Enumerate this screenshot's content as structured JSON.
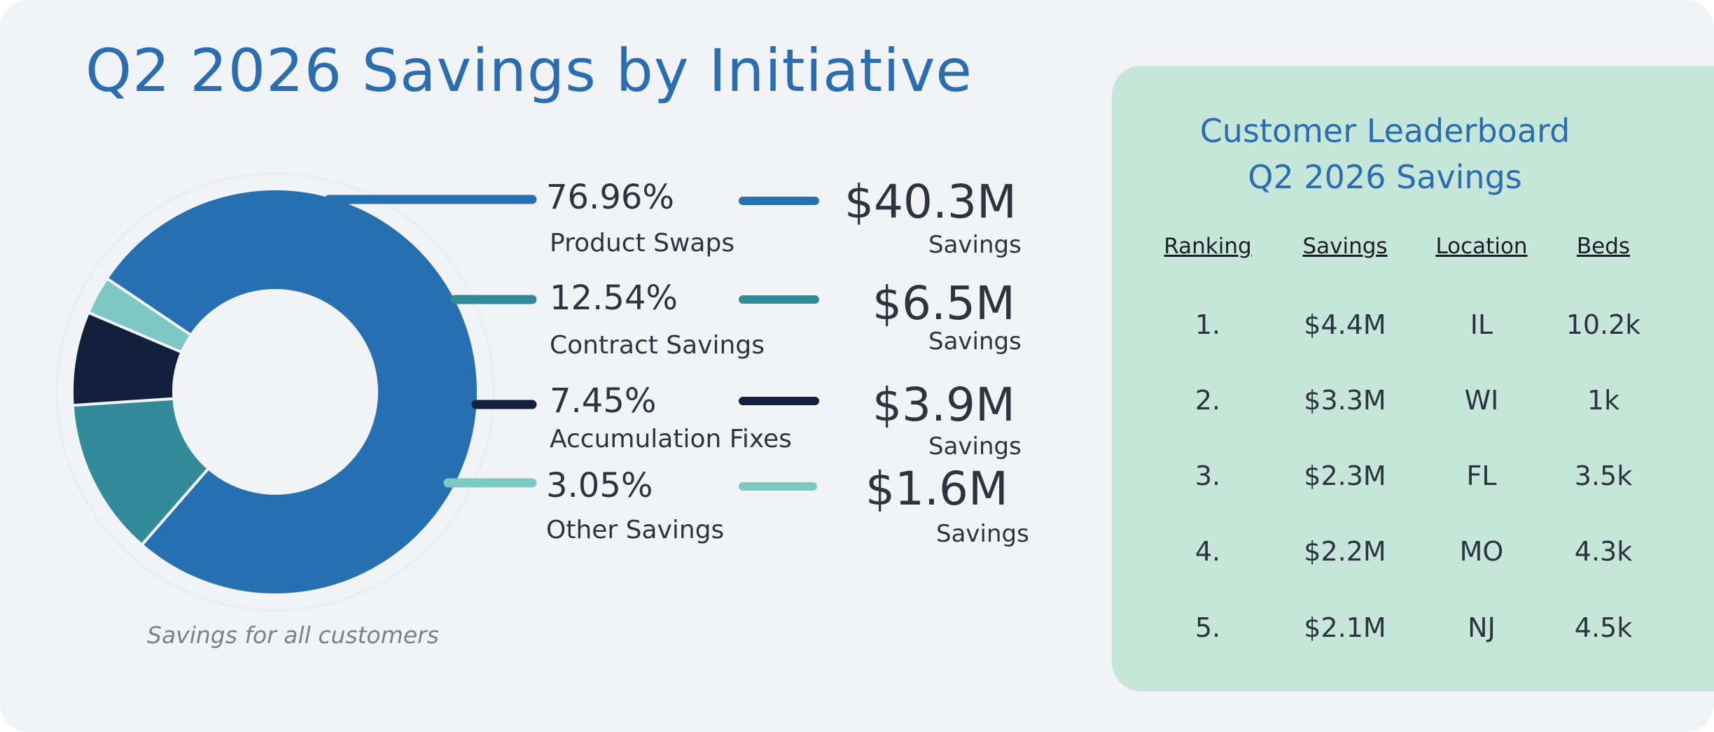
{
  "title": "Q2 2026 Savings by Initiative",
  "chart_data": {
    "type": "pie",
    "categories": [
      "Product Swaps",
      "Contract Savings",
      "Accumulation Fixes",
      "Other Savings"
    ],
    "values": [
      76.96,
      12.54,
      7.45,
      3.05
    ],
    "percent_labels": [
      "76.96%",
      "12.54%",
      "7.45%",
      "3.05%"
    ],
    "savings_values": [
      "$40.3M",
      "$6.5M",
      "$3.9M",
      "$1.6M"
    ],
    "savings_label": "Savings",
    "colors": [
      "#2670b1",
      "#338b99",
      "#13203d",
      "#7ec8c3"
    ],
    "caption": "Savings for all customers"
  },
  "leaderboard": {
    "title_lines": [
      "Customer Leaderboard",
      "Q2 2026 Savings"
    ],
    "columns": [
      "Ranking",
      "Savings",
      "Location",
      "Beds"
    ],
    "rows": [
      [
        "1.",
        "$4.4M",
        "IL",
        "10.2k"
      ],
      [
        "2.",
        "$3.3M",
        "WI",
        "1k"
      ],
      [
        "3.",
        "$2.3M",
        "FL",
        "3.5k"
      ],
      [
        "4.",
        "$2.2M",
        "MO",
        "4.3k"
      ],
      [
        "5.",
        "$2.1M",
        "NJ",
        "4.5k"
      ]
    ]
  }
}
